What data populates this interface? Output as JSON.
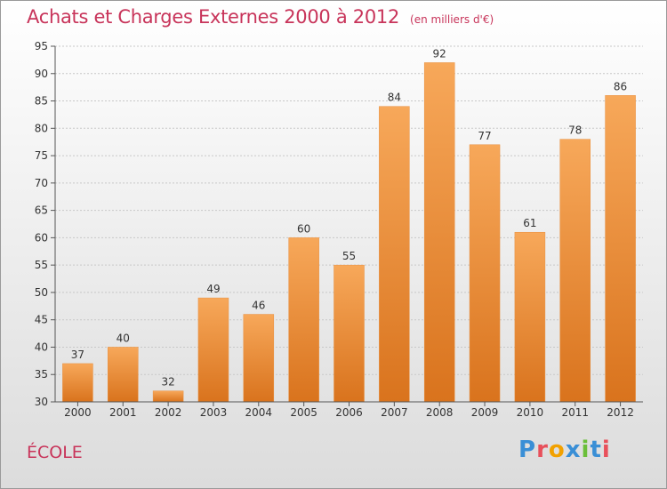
{
  "header": {
    "title": "Achats et Charges Externes 2000 à 2012",
    "unit": "(en milliers d'€)"
  },
  "footer": {
    "commune": "ÉCOLE",
    "brand_letters": [
      "P",
      "r",
      "o",
      "x",
      "i",
      "t",
      "i"
    ],
    "brand_colors": [
      "#3a8fd6",
      "#e8505b",
      "#f2a100",
      "#3a8fd6",
      "#6bbf3a",
      "#3a8fd6",
      "#e8505b"
    ]
  },
  "chart_data": {
    "type": "bar",
    "categories": [
      "2000",
      "2001",
      "2002",
      "2003",
      "2004",
      "2005",
      "2006",
      "2007",
      "2008",
      "2009",
      "2010",
      "2011",
      "2012"
    ],
    "values": [
      37,
      40,
      32,
      49,
      46,
      60,
      55,
      84,
      92,
      77,
      61,
      78,
      86
    ],
    "data_labels": [
      "37",
      "40",
      "32",
      "49",
      "46",
      "60",
      "55",
      "84",
      "92",
      "77",
      "61",
      "78",
      "86"
    ],
    "ylim": [
      30,
      95
    ],
    "yticks": [
      "30",
      "35",
      "40",
      "45",
      "50",
      "55",
      "60",
      "65",
      "70",
      "75",
      "80",
      "85",
      "90",
      "95"
    ],
    "grid": true,
    "bar_color": "#f0953e"
  }
}
